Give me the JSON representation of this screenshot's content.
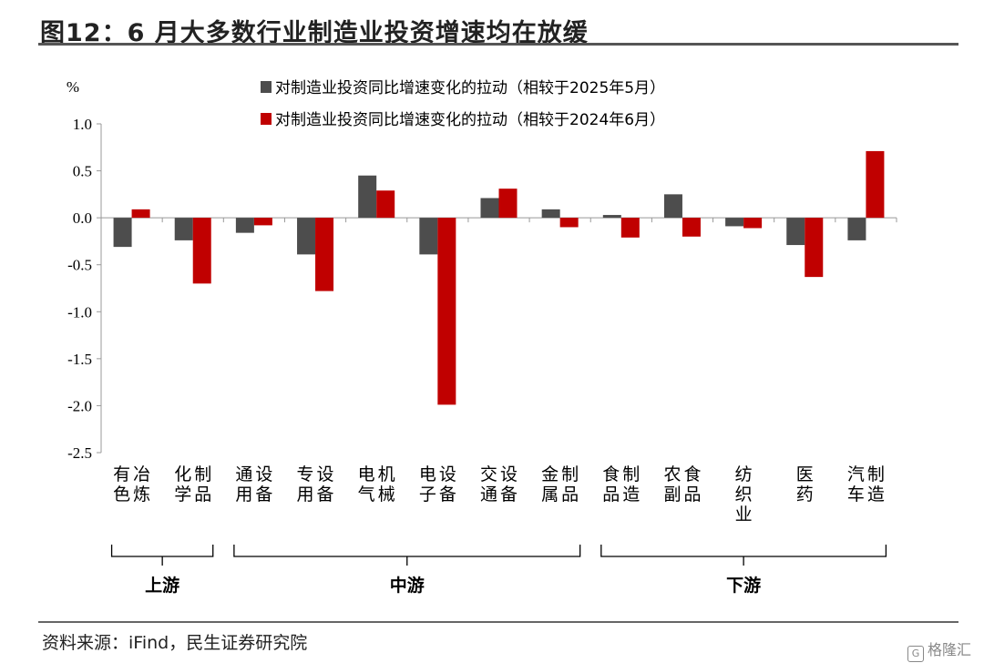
{
  "header": {
    "title": "图12：6 月大多数行业制造业投资增速均在放缓"
  },
  "footer": {
    "source": "资料来源：iFind，民生证券研究院",
    "watermark": "格隆汇",
    "watermark_mark": "G"
  },
  "colors": {
    "series_2025": "#4d4d4d",
    "series_2024": "#c00000",
    "axis": "#999999"
  },
  "chart_data": {
    "type": "bar",
    "ylabel": "%",
    "ylim": [
      -2.5,
      1.0
    ],
    "ytick_values": [
      1.0,
      0.5,
      0.0,
      -0.5,
      -1.0,
      -1.5,
      -2.0,
      -2.5
    ],
    "ytick_labels": [
      "1.0",
      "0.5",
      "0.0",
      "-0.5",
      "-1.0",
      "-1.5",
      "-2.0",
      "-2.5"
    ],
    "categories": [
      "有色冶炼",
      "化学制品",
      "通用设备",
      "专用设备",
      "电气机械",
      "电子设备",
      "交通设备",
      "金属制品",
      "食品制造",
      "农副食品",
      "纺织业",
      "医药",
      "汽车制造"
    ],
    "series": [
      {
        "name": "对制造业投资同比增速变化的拉动（相较于2025年5月）",
        "color": "#4d4d4d",
        "values": [
          -0.31,
          -0.24,
          -0.16,
          -0.39,
          0.45,
          -0.39,
          0.21,
          0.09,
          0.03,
          0.25,
          -0.09,
          -0.29,
          -0.24
        ]
      },
      {
        "name": "对制造业投资同比增速变化的拉动（相较于2024年6月）",
        "color": "#c00000",
        "values": [
          0.09,
          -0.7,
          -0.08,
          -0.78,
          0.29,
          -1.99,
          0.31,
          -0.1,
          -0.21,
          -0.2,
          -0.11,
          -0.63,
          0.71
        ]
      }
    ],
    "groups": [
      {
        "label": "上游",
        "from": 0,
        "to": 1
      },
      {
        "label": "中游",
        "from": 2,
        "to": 7
      },
      {
        "label": "下游",
        "from": 8,
        "to": 12
      }
    ],
    "legend_position": "top-center",
    "grid": false
  }
}
